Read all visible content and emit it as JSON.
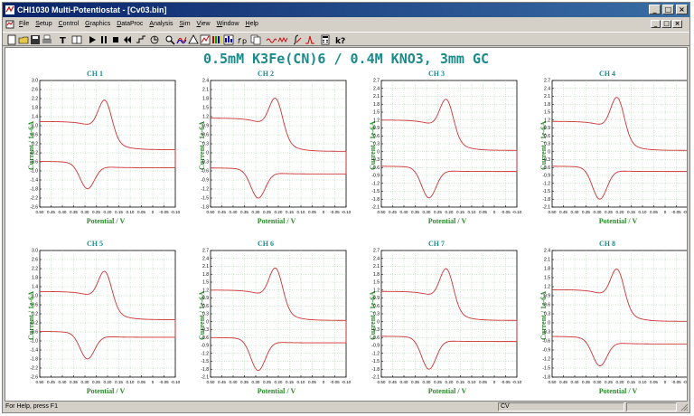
{
  "window": {
    "title": "CHI1030 Multi-Potentiostat - [Cv03.bin]",
    "minimize_glyph": "_",
    "restore_glyph": "□",
    "close_glyph": "×"
  },
  "menu": {
    "items": [
      "File",
      "Setup",
      "Control",
      "Graphics",
      "DataProc",
      "Analysis",
      "Sim",
      "View",
      "Window",
      "Help"
    ]
  },
  "toolbar": {
    "icons": [
      "new-icon",
      "open-icon",
      "save-icon",
      "print-icon",
      "text-icon",
      "split-icon",
      "run-icon",
      "pause-icon",
      "stop-icon",
      "reverse-icon",
      "step-icon",
      "ir-comp-icon",
      "zoom-icon",
      "overlay-icon",
      "add-icon",
      "graph-icon",
      "color-icon",
      "plot-icon",
      "format-icon",
      "copy-icon",
      "smooth-icon",
      "derivative-icon",
      "integrate-icon",
      "peak-icon",
      "calculator-icon",
      "help-icon"
    ]
  },
  "workspace": {
    "title": "0.5mM K3Fe(CN)6 / 0.4M KNO3, 3mm GC"
  },
  "status": {
    "left": "For Help, press F1",
    "mode": "CV"
  },
  "colors": {
    "curve": "#cc3333",
    "grid": "#9fc79f",
    "title_teal": "#1a8a8a",
    "label_green": "#2a8a2a"
  },
  "chart_data": [
    {
      "type": "line",
      "title": "CH 1",
      "xlabel": "Potential / V",
      "ylabel": "Current / 1e-6A",
      "xlim": [
        0.5,
        -0.1
      ],
      "ylim": [
        -2.4,
        3.0
      ],
      "x_reversed": true,
      "grid": true,
      "yticks": [
        "3.0",
        "2.6",
        "2.2",
        "1.8",
        "1.4",
        "1.0",
        "0.6",
        "0.2",
        "-0.2",
        "-0.6",
        "-1.0",
        "-1.4",
        "-1.8",
        "-2.2",
        "-2.6"
      ],
      "xticks": [
        "0.50",
        "0.45",
        "0.40",
        "0.35",
        "0.30",
        "0.25",
        "0.20",
        "0.15",
        "0.10",
        "0.05",
        "0",
        "-0.05",
        "-0.10"
      ],
      "forward": {
        "start": 0.05,
        "tail": 1.25,
        "peak": 2.75,
        "peak_x": 0.21,
        "width": 0.042
      },
      "reverse": {
        "start": -0.45,
        "tail": -0.72,
        "peak": -1.75,
        "peak_x": 0.29,
        "width": 0.045
      }
    },
    {
      "type": "line",
      "title": "CH 2",
      "xlabel": "Potential / V",
      "ylabel": "Current / 1e-6A",
      "xlim": [
        0.5,
        -0.1
      ],
      "ylim": [
        -1.8,
        2.4
      ],
      "x_reversed": true,
      "grid": true,
      "yticks": [
        "2.4",
        "2.1",
        "1.8",
        "1.5",
        "1.2",
        "0.9",
        "0.6",
        "0.3",
        "0",
        "-0.3",
        "-0.6",
        "-0.9",
        "-1.2",
        "-1.5",
        "-1.8"
      ],
      "xticks": [
        "0.50",
        "0.45",
        "0.40",
        "0.35",
        "0.30",
        "0.25",
        "0.20",
        "0.15",
        "0.10",
        "0.05",
        "0",
        "-0.05",
        "-0.10"
      ],
      "forward": {
        "start": 0.05,
        "tail": 1.15,
        "peak": 2.35,
        "peak_x": 0.21,
        "width": 0.042
      },
      "reverse": {
        "start": -0.5,
        "tail": -0.7,
        "peak": -1.6,
        "peak_x": 0.29,
        "width": 0.045
      }
    },
    {
      "type": "line",
      "title": "CH 3",
      "xlabel": "Potential / V",
      "ylabel": "Current / 1e-6A",
      "xlim": [
        0.5,
        -0.1
      ],
      "ylim": [
        -2.1,
        2.7
      ],
      "x_reversed": true,
      "grid": true,
      "yticks": [
        "2.7",
        "2.4",
        "2.1",
        "1.8",
        "1.5",
        "1.2",
        "0.9",
        "0.6",
        "0.3",
        "0",
        "-0.3",
        "-0.6",
        "-0.9",
        "-1.2",
        "-1.5",
        "-1.8",
        "-2.1"
      ],
      "xticks": [
        "0.50",
        "0.45",
        "0.40",
        "0.35",
        "0.30",
        "0.25",
        "0.20",
        "0.15",
        "0.10",
        "0.05",
        "0",
        "-0.05",
        "-0.10"
      ],
      "forward": {
        "start": 0.05,
        "tail": 1.2,
        "peak": 2.55,
        "peak_x": 0.21,
        "width": 0.042
      },
      "reverse": {
        "start": -0.55,
        "tail": -0.75,
        "peak": -1.85,
        "peak_x": 0.29,
        "width": 0.045
      }
    },
    {
      "type": "line",
      "title": "CH 4",
      "xlabel": "Potential / V",
      "ylabel": "Current / 1e-6A",
      "xlim": [
        0.5,
        -0.1
      ],
      "ylim": [
        -2.1,
        2.7
      ],
      "x_reversed": true,
      "grid": true,
      "yticks": [
        "2.7",
        "2.4",
        "2.1",
        "1.8",
        "1.5",
        "1.2",
        "0.9",
        "0.6",
        "0.3",
        "0",
        "-0.3",
        "-0.6",
        "-0.9",
        "-1.2",
        "-1.5",
        "-1.8",
        "-2.1"
      ],
      "xticks": [
        "0.50",
        "0.45",
        "0.40",
        "0.35",
        "0.30",
        "0.25",
        "0.20",
        "0.15",
        "0.10",
        "0.05",
        "0",
        "-0.05",
        "-0.10"
      ],
      "forward": {
        "start": 0.05,
        "tail": 1.15,
        "peak": 2.6,
        "peak_x": 0.21,
        "width": 0.042
      },
      "reverse": {
        "start": -0.55,
        "tail": -0.75,
        "peak": -1.9,
        "peak_x": 0.29,
        "width": 0.045
      }
    },
    {
      "type": "line",
      "title": "CH 5",
      "xlabel": "Potential / V",
      "ylabel": "Current / 1e-6A",
      "xlim": [
        0.5,
        -0.1
      ],
      "ylim": [
        -2.4,
        3.0
      ],
      "x_reversed": true,
      "grid": true,
      "yticks": [
        "3.0",
        "2.6",
        "2.2",
        "1.8",
        "1.4",
        "1.0",
        "0.6",
        "0.2",
        "-0.2",
        "-0.6",
        "-1.0",
        "-1.4",
        "-1.8",
        "-2.2",
        "-2.6"
      ],
      "xticks": [
        "0.50",
        "0.45",
        "0.40",
        "0.35",
        "0.30",
        "0.25",
        "0.20",
        "0.15",
        "0.10",
        "0.05",
        "0",
        "-0.05",
        "-0.10"
      ],
      "forward": {
        "start": 0.05,
        "tail": 1.25,
        "peak": 2.7,
        "peak_x": 0.21,
        "width": 0.042
      },
      "reverse": {
        "start": -0.45,
        "tail": -0.7,
        "peak": -1.75,
        "peak_x": 0.29,
        "width": 0.045
      }
    },
    {
      "type": "line",
      "title": "CH 6",
      "xlabel": "Potential / V",
      "ylabel": "Current / 1e-6A",
      "xlim": [
        0.5,
        -0.1
      ],
      "ylim": [
        -2.1,
        2.7
      ],
      "x_reversed": true,
      "grid": true,
      "yticks": [
        "2.7",
        "2.4",
        "2.1",
        "1.8",
        "1.5",
        "1.2",
        "0.9",
        "0.6",
        "0.3",
        "0",
        "-0.3",
        "-0.6",
        "-0.9",
        "-1.2",
        "-1.5",
        "-1.8",
        "-2.1"
      ],
      "xticks": [
        "0.50",
        "0.45",
        "0.40",
        "0.35",
        "0.30",
        "0.25",
        "0.20",
        "0.15",
        "0.10",
        "0.05",
        "0",
        "-0.05",
        "-0.10"
      ],
      "forward": {
        "start": 0.05,
        "tail": 1.2,
        "peak": 2.6,
        "peak_x": 0.21,
        "width": 0.042
      },
      "reverse": {
        "start": -0.6,
        "tail": -0.8,
        "peak": -1.95,
        "peak_x": 0.29,
        "width": 0.045
      }
    },
    {
      "type": "line",
      "title": "CH 7",
      "xlabel": "Potential / V",
      "ylabel": "Current / 1e-6A",
      "xlim": [
        0.5,
        -0.1
      ],
      "ylim": [
        -2.1,
        2.7
      ],
      "x_reversed": true,
      "grid": true,
      "yticks": [
        "2.7",
        "2.4",
        "2.1",
        "1.8",
        "1.5",
        "1.2",
        "0.9",
        "0.6",
        "0.3",
        "0",
        "-0.3",
        "-0.6",
        "-0.9",
        "-1.2",
        "-1.5",
        "-1.8",
        "-2.1"
      ],
      "xticks": [
        "0.50",
        "0.45",
        "0.40",
        "0.35",
        "0.30",
        "0.25",
        "0.20",
        "0.15",
        "0.10",
        "0.05",
        "0",
        "-0.05",
        "-0.10"
      ],
      "forward": {
        "start": 0.05,
        "tail": 1.15,
        "peak": 2.55,
        "peak_x": 0.21,
        "width": 0.042
      },
      "reverse": {
        "start": -0.55,
        "tail": -0.75,
        "peak": -1.9,
        "peak_x": 0.29,
        "width": 0.045
      }
    },
    {
      "type": "line",
      "title": "CH 8",
      "xlabel": "Potential / V",
      "ylabel": "Current / 1e-6A",
      "xlim": [
        0.5,
        -0.1
      ],
      "ylim": [
        -1.8,
        2.4
      ],
      "x_reversed": true,
      "grid": true,
      "yticks": [
        "2.4",
        "2.1",
        "1.8",
        "1.5",
        "1.2",
        "0.9",
        "0.6",
        "0.3",
        "0",
        "-0.3",
        "-0.6",
        "-0.9",
        "-1.2",
        "-1.5",
        "-1.8"
      ],
      "xticks": [
        "0.50",
        "0.45",
        "0.40",
        "0.35",
        "0.30",
        "0.25",
        "0.20",
        "0.15",
        "0.10",
        "0.05",
        "0",
        "-0.05",
        "-0.10"
      ],
      "forward": {
        "start": 0.05,
        "tail": 1.1,
        "peak": 2.3,
        "peak_x": 0.21,
        "width": 0.042
      },
      "reverse": {
        "start": -0.45,
        "tail": -0.7,
        "peak": -1.55,
        "peak_x": 0.29,
        "width": 0.045
      }
    }
  ]
}
